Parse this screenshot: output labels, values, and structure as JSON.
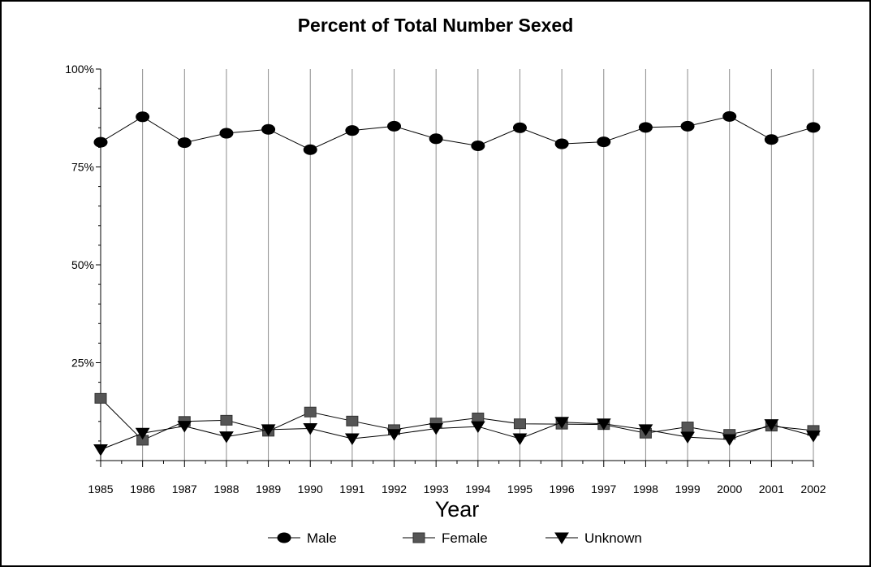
{
  "chart_data": {
    "type": "line",
    "title": "Percent of Total Number Sexed",
    "xlabel": "Year",
    "ylabel": "",
    "x": [
      1985,
      1986,
      1987,
      1988,
      1989,
      1990,
      1991,
      1992,
      1993,
      1994,
      1995,
      1996,
      1997,
      1998,
      1999,
      2000,
      2001,
      2002
    ],
    "ylim": [
      0,
      100
    ],
    "yticks": [
      "25%",
      "50%",
      "75%",
      "100%"
    ],
    "ytick_values": [
      25,
      50,
      75,
      100
    ],
    "grid": "vertical",
    "legend": "bottom",
    "series": [
      {
        "name": "Male",
        "marker": "circle",
        "color": "#000000",
        "values": [
          81.3,
          87.8,
          81.2,
          83.6,
          84.6,
          79.4,
          84.3,
          85.4,
          82.2,
          80.4,
          85.0,
          80.9,
          81.4,
          85.1,
          85.4,
          87.9,
          82.0,
          85.1
        ]
      },
      {
        "name": "Female",
        "marker": "square",
        "color": "#555555",
        "values": [
          15.9,
          5.2,
          10.0,
          10.3,
          7.5,
          12.4,
          10.1,
          7.9,
          9.6,
          10.9,
          9.4,
          9.3,
          9.2,
          7.0,
          8.6,
          6.7,
          8.8,
          7.7
        ]
      },
      {
        "name": "Unknown",
        "marker": "triangle-down",
        "color": "#000000",
        "values": [
          2.8,
          7.0,
          8.8,
          6.1,
          7.9,
          8.2,
          5.6,
          6.7,
          8.2,
          8.7,
          5.6,
          9.8,
          9.4,
          7.9,
          6.0,
          5.4,
          9.2,
          6.3
        ]
      }
    ]
  }
}
